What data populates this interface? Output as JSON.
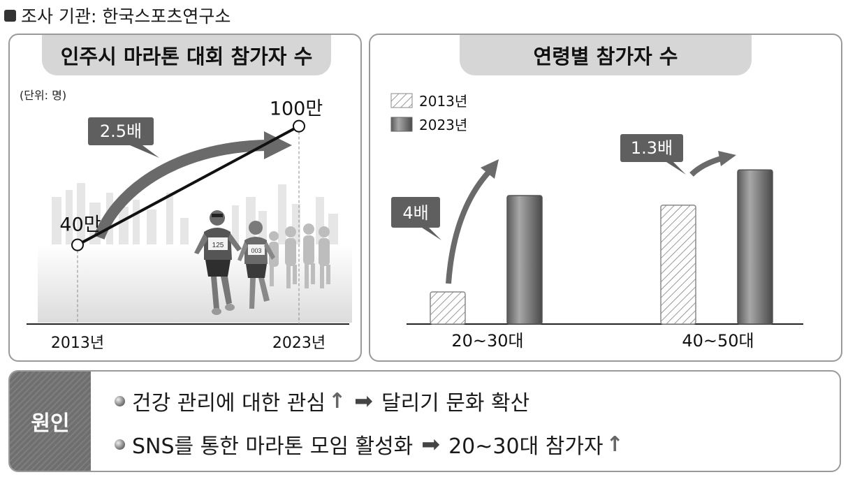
{
  "source": "조사 기관: 한국스포츠연구소",
  "chart_data": [
    {
      "type": "line",
      "title": "인주시 마라톤 대회 참가자 수",
      "unit_label": "(단위: 명)",
      "x": [
        "2013년",
        "2023년"
      ],
      "y": [
        400000,
        1000000
      ],
      "point_labels": [
        "40만",
        "100만"
      ],
      "annotation": "2.5배",
      "runner_bibs": [
        "125",
        "003"
      ]
    },
    {
      "type": "bar",
      "title": "연령별 참가자 수",
      "categories": [
        "20~30대",
        "40~50대"
      ],
      "series": [
        {
          "name": "2013년",
          "values": [
            1,
            3.7
          ],
          "pattern": "hatched"
        },
        {
          "name": "2023년",
          "values": [
            4,
            4.8
          ],
          "pattern": "solid"
        }
      ],
      "annotations": [
        "4배",
        "1.3배"
      ],
      "legend_position": "top-left"
    }
  ],
  "cause": {
    "label": "원인",
    "items": [
      {
        "text": "건강 관리에 대한 관심",
        "up": "↑",
        "result": "달리기 문화 확산"
      },
      {
        "text": "SNS를 통한 마라톤 모임 활성화",
        "result": "20~30대 참가자",
        "up": "↑"
      }
    ],
    "arrow": "➡"
  }
}
